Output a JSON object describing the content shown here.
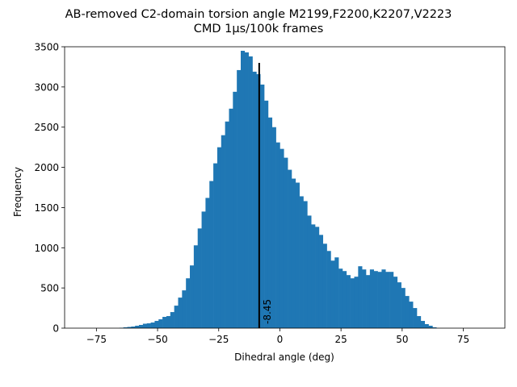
{
  "chart_data": {
    "type": "bar",
    "title_line1": "AB-removed C2-domain torsion angle M2199,F2200,K2207,V2223",
    "title_line2": "CMD 1μs/100k frames",
    "xlabel": "Dihedral angle (deg)",
    "ylabel": "Frequency",
    "xlim": [
      -88,
      92
    ],
    "ylim": [
      0,
      3500
    ],
    "xticks": [
      -75,
      -50,
      -25,
      0,
      25,
      50,
      75
    ],
    "xtick_labels": [
      "−75",
      "−50",
      "−25",
      "0",
      "25",
      "50",
      "75"
    ],
    "yticks": [
      0,
      500,
      1000,
      1500,
      2000,
      2500,
      3000,
      3500
    ],
    "ytick_labels": [
      "0",
      "500",
      "1000",
      "1500",
      "2000",
      "2500",
      "3000",
      "3500"
    ],
    "bin_start": -80,
    "bin_width": 1.6,
    "values": [
      0,
      0,
      0,
      0,
      0,
      0,
      0,
      0,
      0,
      5,
      10,
      15,
      20,
      30,
      40,
      55,
      60,
      70,
      90,
      110,
      140,
      150,
      200,
      280,
      380,
      470,
      620,
      780,
      1030,
      1240,
      1450,
      1620,
      1830,
      2050,
      2250,
      2400,
      2570,
      2730,
      2940,
      3210,
      3450,
      3430,
      3380,
      3190,
      3160,
      3030,
      2830,
      2620,
      2500,
      2310,
      2230,
      2120,
      1970,
      1860,
      1810,
      1640,
      1580,
      1400,
      1290,
      1260,
      1160,
      1050,
      960,
      840,
      880,
      740,
      710,
      660,
      620,
      640,
      770,
      730,
      660,
      730,
      710,
      700,
      730,
      700,
      700,
      640,
      570,
      500,
      400,
      330,
      250,
      150,
      90,
      50,
      30,
      10
    ],
    "mean_line": {
      "x": -8.45,
      "label": "-8.45",
      "color": "#000000"
    },
    "bar_color": "#1f77b4",
    "grid": false,
    "legend": "none"
  }
}
